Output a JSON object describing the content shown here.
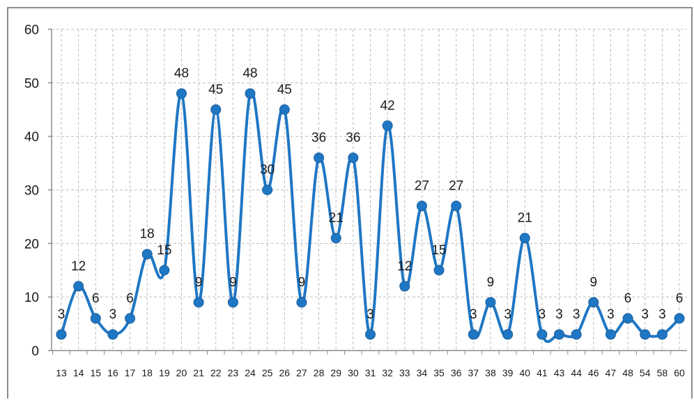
{
  "chart_data": {
    "type": "line",
    "title": "",
    "xlabel": "",
    "ylabel": "",
    "ylim": [
      0,
      60
    ],
    "yticks": [
      0,
      10,
      20,
      30,
      40,
      50,
      60
    ],
    "grid": true,
    "smooth": true,
    "legend": "none",
    "color": "#1f77c4",
    "categories": [
      "13",
      "14",
      "15",
      "16",
      "17",
      "18",
      "19",
      "20",
      "21",
      "22",
      "23",
      "24",
      "25",
      "26",
      "27",
      "28",
      "29",
      "30",
      "31",
      "32",
      "33",
      "34",
      "35",
      "36",
      "37",
      "38",
      "39",
      "40",
      "41",
      "43",
      "44",
      "46",
      "47",
      "48",
      "54",
      "58",
      "60"
    ],
    "values": [
      3,
      12,
      6,
      3,
      6,
      18,
      15,
      48,
      9,
      45,
      9,
      48,
      30,
      45,
      9,
      36,
      21,
      36,
      3,
      42,
      12,
      27,
      15,
      27,
      3,
      9,
      3,
      21,
      3,
      3,
      3,
      9,
      3,
      6,
      3,
      3,
      6
    ]
  }
}
